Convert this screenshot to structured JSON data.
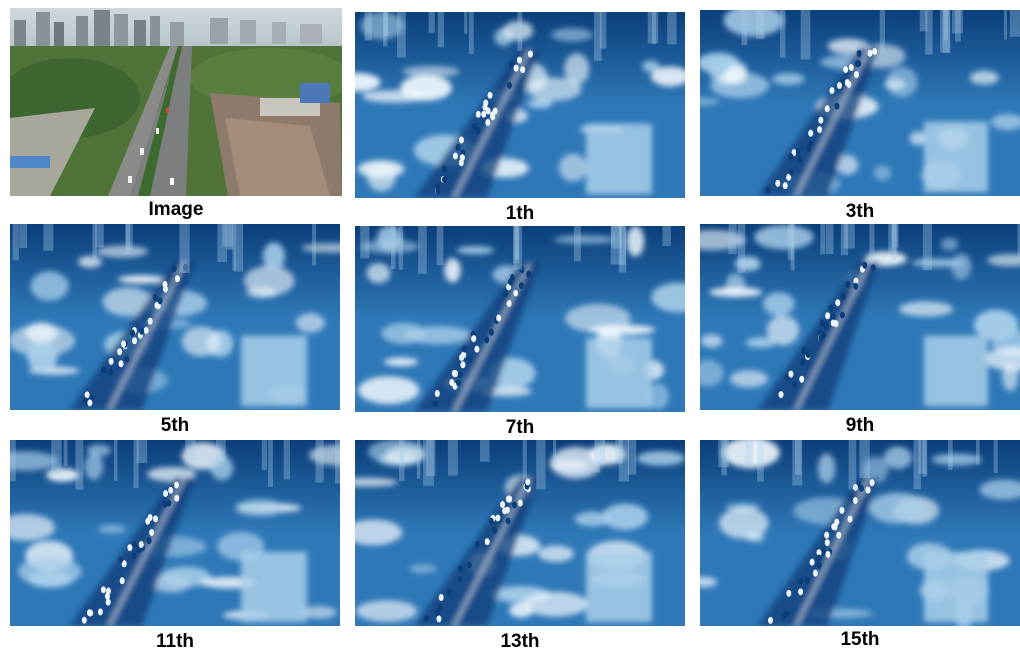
{
  "panels": [
    {
      "caption": "Image",
      "kind": "photo"
    },
    {
      "caption": "1th",
      "kind": "heatmap"
    },
    {
      "caption": "3th",
      "kind": "heatmap"
    },
    {
      "caption": "5th",
      "kind": "heatmap"
    },
    {
      "caption": "7th",
      "kind": "heatmap"
    },
    {
      "caption": "9th",
      "kind": "heatmap"
    },
    {
      "caption": "11th",
      "kind": "heatmap"
    },
    {
      "caption": "13th",
      "kind": "heatmap"
    },
    {
      "caption": "15th",
      "kind": "heatmap"
    }
  ],
  "colors": {
    "heat_dark": "#0b3f7a",
    "heat_mid": "#2f78b7",
    "heat_light": "#a9cfea",
    "heat_white": "#eef6fc"
  }
}
